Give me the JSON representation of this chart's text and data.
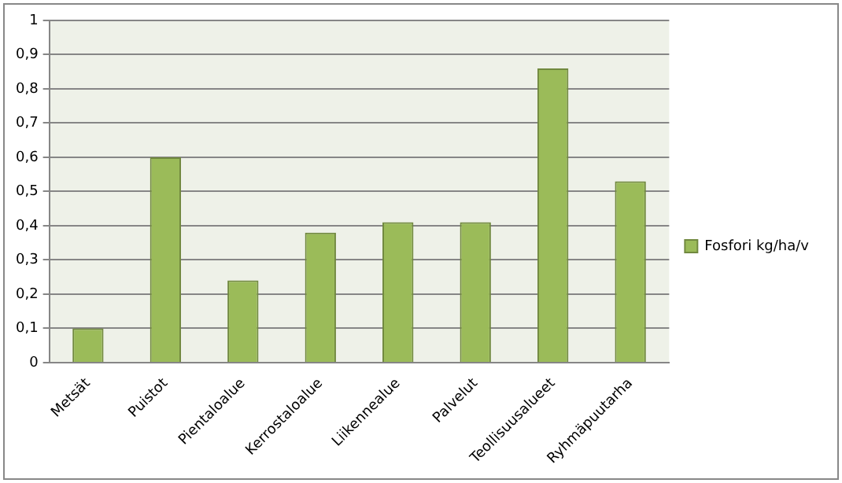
{
  "chart_data": {
    "type": "bar",
    "categories": [
      "Metsät",
      "Puistot",
      "Pientaloalue",
      "Kerrostaloalue",
      "Liikennealue",
      "Palvelut",
      "Teollisuusalueet",
      "Ryhmäpuutarha"
    ],
    "series": [
      {
        "name": "Fosfori kg/ha/v",
        "color": "#9bbb59",
        "values": [
          0.1,
          0.6,
          0.24,
          0.38,
          0.41,
          0.41,
          0.86,
          0.53
        ]
      }
    ],
    "ylim": [
      0,
      1
    ],
    "yticks": [
      {
        "value": 0,
        "label": "0"
      },
      {
        "value": 0.1,
        "label": "0,1"
      },
      {
        "value": 0.2,
        "label": "0,2"
      },
      {
        "value": 0.3,
        "label": "0,3"
      },
      {
        "value": 0.4,
        "label": "0,4"
      },
      {
        "value": 0.5,
        "label": "0,5"
      },
      {
        "value": 0.6,
        "label": "0,6"
      },
      {
        "value": 0.7,
        "label": "0,7"
      },
      {
        "value": 0.8,
        "label": "0,8"
      },
      {
        "value": 0.9,
        "label": "0,9"
      },
      {
        "value": 1,
        "label": "1"
      }
    ],
    "grid": "y",
    "legend": "right"
  }
}
